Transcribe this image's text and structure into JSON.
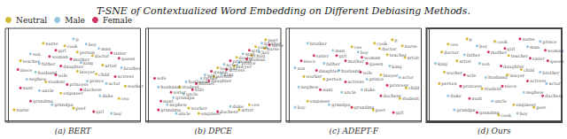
{
  "chart_data": [
    {
      "type": "scatter",
      "title": "T-SNE of Contextualized Word Embedding on Different Debiasing Methods.",
      "xlabel": "(a) BERT",
      "xlim": [
        -0.02,
        1.05
      ],
      "ylim": [
        -0.02,
        1.05
      ],
      "tick_labels": false,
      "grid": false,
      "legend": "upper left",
      "series": [
        {
          "name": "Neutral",
          "color": "#C8A800",
          "marker": "circle",
          "x": [
            0.28,
            0.45,
            0.55,
            0.67,
            0.1,
            0.75,
            0.55,
            0.7,
            0.3,
            0.93,
            0.42,
            0.88,
            0.52,
            0.05
          ],
          "y": [
            0.88,
            0.85,
            0.78,
            0.74,
            0.68,
            0.63,
            0.56,
            0.53,
            0.44,
            0.39,
            0.31,
            0.25,
            0.14,
            0.12
          ],
          "labels": [
            "nurse",
            "cook",
            "person",
            "doctor",
            "teacher",
            "artist",
            "lawyer",
            "child",
            "student",
            "worker",
            "engineer",
            "ceo",
            "poet",
            "nurse"
          ]
        },
        {
          "name": "Male",
          "color": "#7AB8D4",
          "marker": "circle",
          "x": [
            0.52,
            0.62,
            0.72,
            0.18,
            0.25,
            0.58,
            0.9,
            0.22,
            0.15,
            0.63,
            0.78,
            0.25,
            0.73,
            0.35,
            0.82
          ],
          "y": [
            0.93,
            0.87,
            0.82,
            0.76,
            0.65,
            0.66,
            0.6,
            0.55,
            0.47,
            0.45,
            0.42,
            0.34,
            0.28,
            0.18,
            0.08
          ],
          "labels": [
            "p",
            "boy",
            "man",
            "son",
            "father",
            "king",
            "brother",
            "husband",
            "nephew",
            "prince",
            "actor",
            "uncle",
            "duke",
            "grandpa",
            "boy"
          ]
        },
        {
          "name": "Female",
          "color": "#C8003C",
          "marker": "circle",
          "x": [
            0.38,
            0.33,
            0.5,
            0.82,
            0.88,
            0.42,
            0.08,
            0.38,
            0.85,
            0.47,
            0.1,
            0.58,
            0.18,
            0.68
          ],
          "y": [
            0.8,
            0.73,
            0.7,
            0.77,
            0.71,
            0.62,
            0.58,
            0.52,
            0.5,
            0.41,
            0.37,
            0.35,
            0.22,
            0.1
          ],
          "labels": [
            "girl",
            "woman",
            "mother",
            "sister",
            "queen",
            "daughter",
            "niece",
            "wife",
            "actress",
            "princess",
            "aunt",
            "duchess",
            "grandma",
            "girl"
          ]
        }
      ]
    },
    {
      "type": "scatter",
      "xlabel": "(b) DPCE",
      "xlim": [
        -0.02,
        1.05
      ],
      "ylim": [
        -0.02,
        1.05
      ],
      "tick_labels": false,
      "grid": false,
      "series": [
        {
          "name": "Neutral",
          "color": "#C8A800",
          "marker": "circle",
          "x": [
            0.25,
            0.52,
            0.55,
            0.68,
            0.7,
            0.82,
            0.85,
            0.92,
            0.93,
            0.4,
            0.32,
            0.72,
            0.8
          ],
          "y": [
            0.38,
            0.5,
            0.6,
            0.62,
            0.72,
            0.74,
            0.84,
            0.82,
            0.92,
            0.08,
            0.14,
            0.12,
            0.18
          ],
          "labels": [
            "student",
            "person",
            "teacher",
            "lawyer",
            "doctor",
            "child",
            "cook",
            "nurse",
            "poet",
            "engineer",
            "worker",
            "artist",
            "ceo"
          ]
        },
        {
          "name": "Male",
          "color": "#7AB8D4",
          "marker": "circle",
          "x": [
            0.15,
            0.2,
            0.28,
            0.3,
            0.42,
            0.45,
            0.58,
            0.6,
            0.72,
            0.75,
            0.88,
            0.9,
            0.65,
            0.22,
            0.08
          ],
          "y": [
            0.18,
            0.26,
            0.3,
            0.44,
            0.48,
            0.52,
            0.53,
            0.64,
            0.66,
            0.76,
            0.78,
            0.88,
            0.16,
            0.08,
            0.38
          ],
          "labels": [
            "nephew",
            "grandpa",
            "uncle",
            "husband",
            "father",
            "son",
            "king",
            "actor",
            "prince",
            "man",
            "boy",
            "brother",
            "duke",
            "uncle",
            "husband"
          ]
        },
        {
          "name": "Female",
          "color": "#C8003C",
          "marker": "circle",
          "x": [
            0.08,
            0.1,
            0.18,
            0.35,
            0.38,
            0.48,
            0.5,
            0.62,
            0.65,
            0.78,
            0.8,
            0.96,
            0.55,
            0.05
          ],
          "y": [
            0.12,
            0.22,
            0.32,
            0.35,
            0.42,
            0.45,
            0.56,
            0.58,
            0.68,
            0.7,
            0.8,
            0.86,
            0.1,
            0.48
          ],
          "labels": [
            "grandma",
            "aunt",
            "sister",
            "wife",
            "mother",
            "daughter",
            "queen",
            "actress",
            "princess",
            "woman",
            "girl",
            "niece",
            "duchess",
            "wife"
          ]
        }
      ]
    },
    {
      "type": "scatter",
      "xlabel": "(c) ADEPT-F",
      "xlim": [
        -0.02,
        1.05
      ],
      "ylim": [
        -0.02,
        1.05
      ],
      "tick_labels": false,
      "grid": false,
      "series": [
        {
          "name": "Neutral",
          "color": "#C8A800",
          "marker": "circle",
          "x": [
            0.82,
            0.68,
            0.9,
            0.5,
            0.72,
            0.78,
            0.92,
            0.73,
            0.12,
            0.28,
            0.93,
            0.88,
            0.15,
            0.67
          ],
          "y": [
            0.92,
            0.88,
            0.85,
            0.84,
            0.82,
            0.75,
            0.72,
            0.52,
            0.5,
            0.47,
            0.37,
            0.25,
            0.22,
            0.12
          ],
          "labels": [
            "p",
            "cook",
            "nurse",
            "ceo",
            "doctor",
            "teacher",
            "artist",
            "lawyer",
            "worker",
            "person",
            "child",
            "student",
            "engineer",
            "poet"
          ]
        },
        {
          "name": "Male",
          "color": "#7AB8D4",
          "marker": "circle",
          "x": [
            0.15,
            0.35,
            0.55,
            0.28,
            0.8,
            0.05,
            0.4,
            0.88,
            0.62,
            0.08,
            0.42,
            0.58,
            0.32,
            0.05
          ],
          "y": [
            0.88,
            0.8,
            0.78,
            0.65,
            0.62,
            0.6,
            0.57,
            0.49,
            0.47,
            0.38,
            0.32,
            0.35,
            0.18,
            0.15
          ],
          "labels": [
            "brother",
            "man",
            "boy",
            "father",
            "king",
            "son",
            "husband",
            "actor",
            "prince",
            "nephew",
            "uncle",
            "duke",
            "grandpa",
            "boy"
          ]
        },
        {
          "name": "Female",
          "color": "#C8003C",
          "marker": "circle",
          "x": [
            0.2,
            0.38,
            0.58,
            0.1,
            0.45,
            0.62,
            0.22,
            0.57,
            0.45,
            0.78,
            0.25,
            0.73,
            0.5,
            0.83
          ],
          "y": [
            0.74,
            0.74,
            0.72,
            0.68,
            0.68,
            0.65,
            0.57,
            0.55,
            0.44,
            0.4,
            0.35,
            0.28,
            0.15,
            0.09
          ],
          "labels": [
            "sister",
            "girl",
            "woman",
            "niece",
            "mother",
            "queen",
            "daughter",
            "wife",
            "actress",
            "princess",
            "aunt",
            "duchess",
            "grandma",
            "girl"
          ]
        }
      ]
    },
    {
      "type": "scatter",
      "xlabel": "(d) Ours",
      "xlim": [
        -0.02,
        1.05
      ],
      "ylim": [
        -0.02,
        1.05
      ],
      "tick_labels": false,
      "grid": false,
      "series": [
        {
          "name": "Neutral",
          "color": "#C8A800",
          "marker": "circle",
          "x": [
            0.3,
            0.52,
            0.15,
            0.1,
            0.63,
            0.22,
            0.73,
            0.12,
            0.62,
            0.08,
            0.42,
            0.67,
            0.83,
            0.55
          ],
          "y": [
            0.93,
            0.9,
            0.87,
            0.78,
            0.74,
            0.68,
            0.58,
            0.55,
            0.52,
            0.42,
            0.36,
            0.18,
            0.15,
            0.06
          ],
          "labels": [
            "p",
            "cook",
            "ceo",
            "doctor",
            "teacher",
            "artist",
            "child",
            "worker",
            "lawyer",
            "person",
            "student",
            "engineer",
            "poet",
            "cook"
          ]
        },
        {
          "name": "Male",
          "color": "#7AB8D4",
          "marker": "circle",
          "x": [
            0.88,
            0.38,
            0.78,
            0.28,
            0.05,
            0.4,
            0.88,
            0.45,
            0.93,
            0.75,
            0.15,
            0.5,
            0.2,
            0.7
          ],
          "y": [
            0.9,
            0.85,
            0.84,
            0.75,
            0.65,
            0.65,
            0.55,
            0.49,
            0.42,
            0.32,
            0.28,
            0.22,
            0.12,
            0.08
          ],
          "labels": [
            "prince",
            "boy",
            "man",
            "father",
            "king",
            "son",
            "brother",
            "husband",
            "actor",
            "nephew",
            "duke",
            "uncle",
            "grandpa",
            "boy"
          ]
        },
        {
          "name": "Female",
          "color": "#C8003C",
          "marker": "circle",
          "x": [
            0.72,
            0.6,
            0.92,
            0.47,
            0.8,
            0.94,
            0.57,
            0.28,
            0.78,
            0.25,
            0.58,
            0.9,
            0.32,
            0.38
          ],
          "y": [
            0.93,
            0.82,
            0.8,
            0.78,
            0.71,
            0.68,
            0.62,
            0.52,
            0.45,
            0.39,
            0.39,
            0.28,
            0.25,
            0.09
          ],
          "labels": [
            "nurse",
            "girl",
            "woman",
            "mother",
            "sister",
            "queen",
            "daughter",
            "wife",
            "actress",
            "princess",
            "niece",
            "duchess",
            "aunt",
            "grandma"
          ]
        }
      ]
    }
  ]
}
